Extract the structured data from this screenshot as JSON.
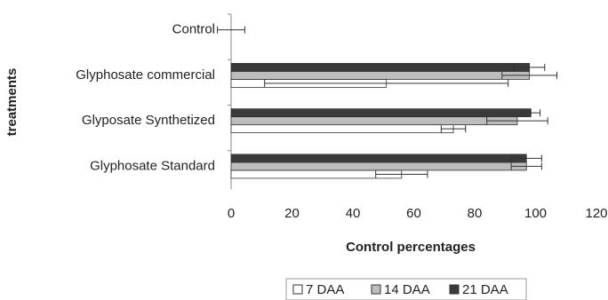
{
  "chart_data": {
    "type": "bar",
    "orientation": "horizontal",
    "x_label": "Control percentages",
    "y_label": "treatments",
    "categories": [
      "Control",
      "Glyphosate commercial",
      "Glyposate Synthetized",
      "Glyphosate Standard"
    ],
    "series": [
      {
        "name": "7 DAA",
        "color": "#ffffff",
        "values": [
          0,
          51,
          73,
          56
        ],
        "errors": [
          0,
          40,
          4,
          8.5
        ]
      },
      {
        "name": "14 DAA",
        "color": "#bdbdbd",
        "values": [
          0,
          98,
          94,
          97
        ],
        "errors": [
          4.5,
          9,
          10,
          5
        ]
      },
      {
        "name": "21 DAA",
        "color": "#3a3a3a",
        "values": [
          0,
          98,
          98.5,
          97
        ],
        "errors": [
          0,
          5,
          3,
          5
        ]
      }
    ],
    "xlim": [
      0,
      120
    ],
    "xticks": [
      0,
      20,
      40,
      60,
      80,
      100,
      120
    ],
    "legend": "bottom"
  }
}
